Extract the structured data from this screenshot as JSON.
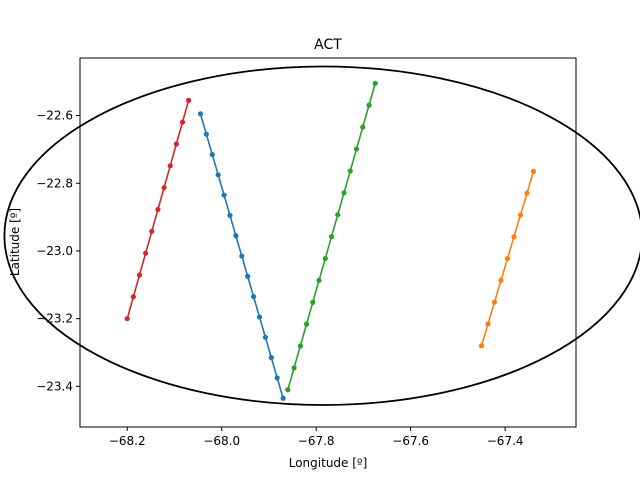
{
  "chart_data": {
    "type": "line",
    "title": "ACT",
    "xlabel": "Longitude [º]",
    "ylabel": "Latitude [º]",
    "xlim": [
      -68.3,
      -67.25
    ],
    "ylim": [
      -23.52,
      -22.43
    ],
    "xticks": [
      -68.2,
      -68.0,
      -67.8,
      -67.6,
      -67.4
    ],
    "xtick_labels": [
      "−68.2",
      "−68.0",
      "−67.8",
      "−67.6",
      "−67.4"
    ],
    "yticks": [
      -22.6,
      -22.8,
      -23.0,
      -23.2,
      -23.4
    ],
    "ytick_labels": [
      "−22.6",
      "−22.8",
      "−23.0",
      "−23.2",
      "−23.4"
    ],
    "grid": false,
    "boundary": {
      "shape": "ellipse",
      "color": "#000000",
      "center": [
        -67.785,
        -22.955
      ],
      "radius_x": 0.675,
      "radius_y": 0.5
    },
    "series": [
      {
        "color": "#1f77b4",
        "start": [
          -68.045,
          -22.595
        ],
        "end": [
          -67.87,
          -23.435
        ],
        "points": 15
      },
      {
        "color": "#ff7f0e",
        "start": [
          -67.45,
          -23.28
        ],
        "end": [
          -67.34,
          -22.765
        ],
        "points": 9
      },
      {
        "color": "#2ca02c",
        "start": [
          -67.86,
          -23.41
        ],
        "end": [
          -67.675,
          -22.505
        ],
        "points": 15
      },
      {
        "color": "#d62728",
        "start": [
          -68.2,
          -23.2
        ],
        "end": [
          -68.07,
          -22.555
        ],
        "points": 11
      }
    ]
  }
}
